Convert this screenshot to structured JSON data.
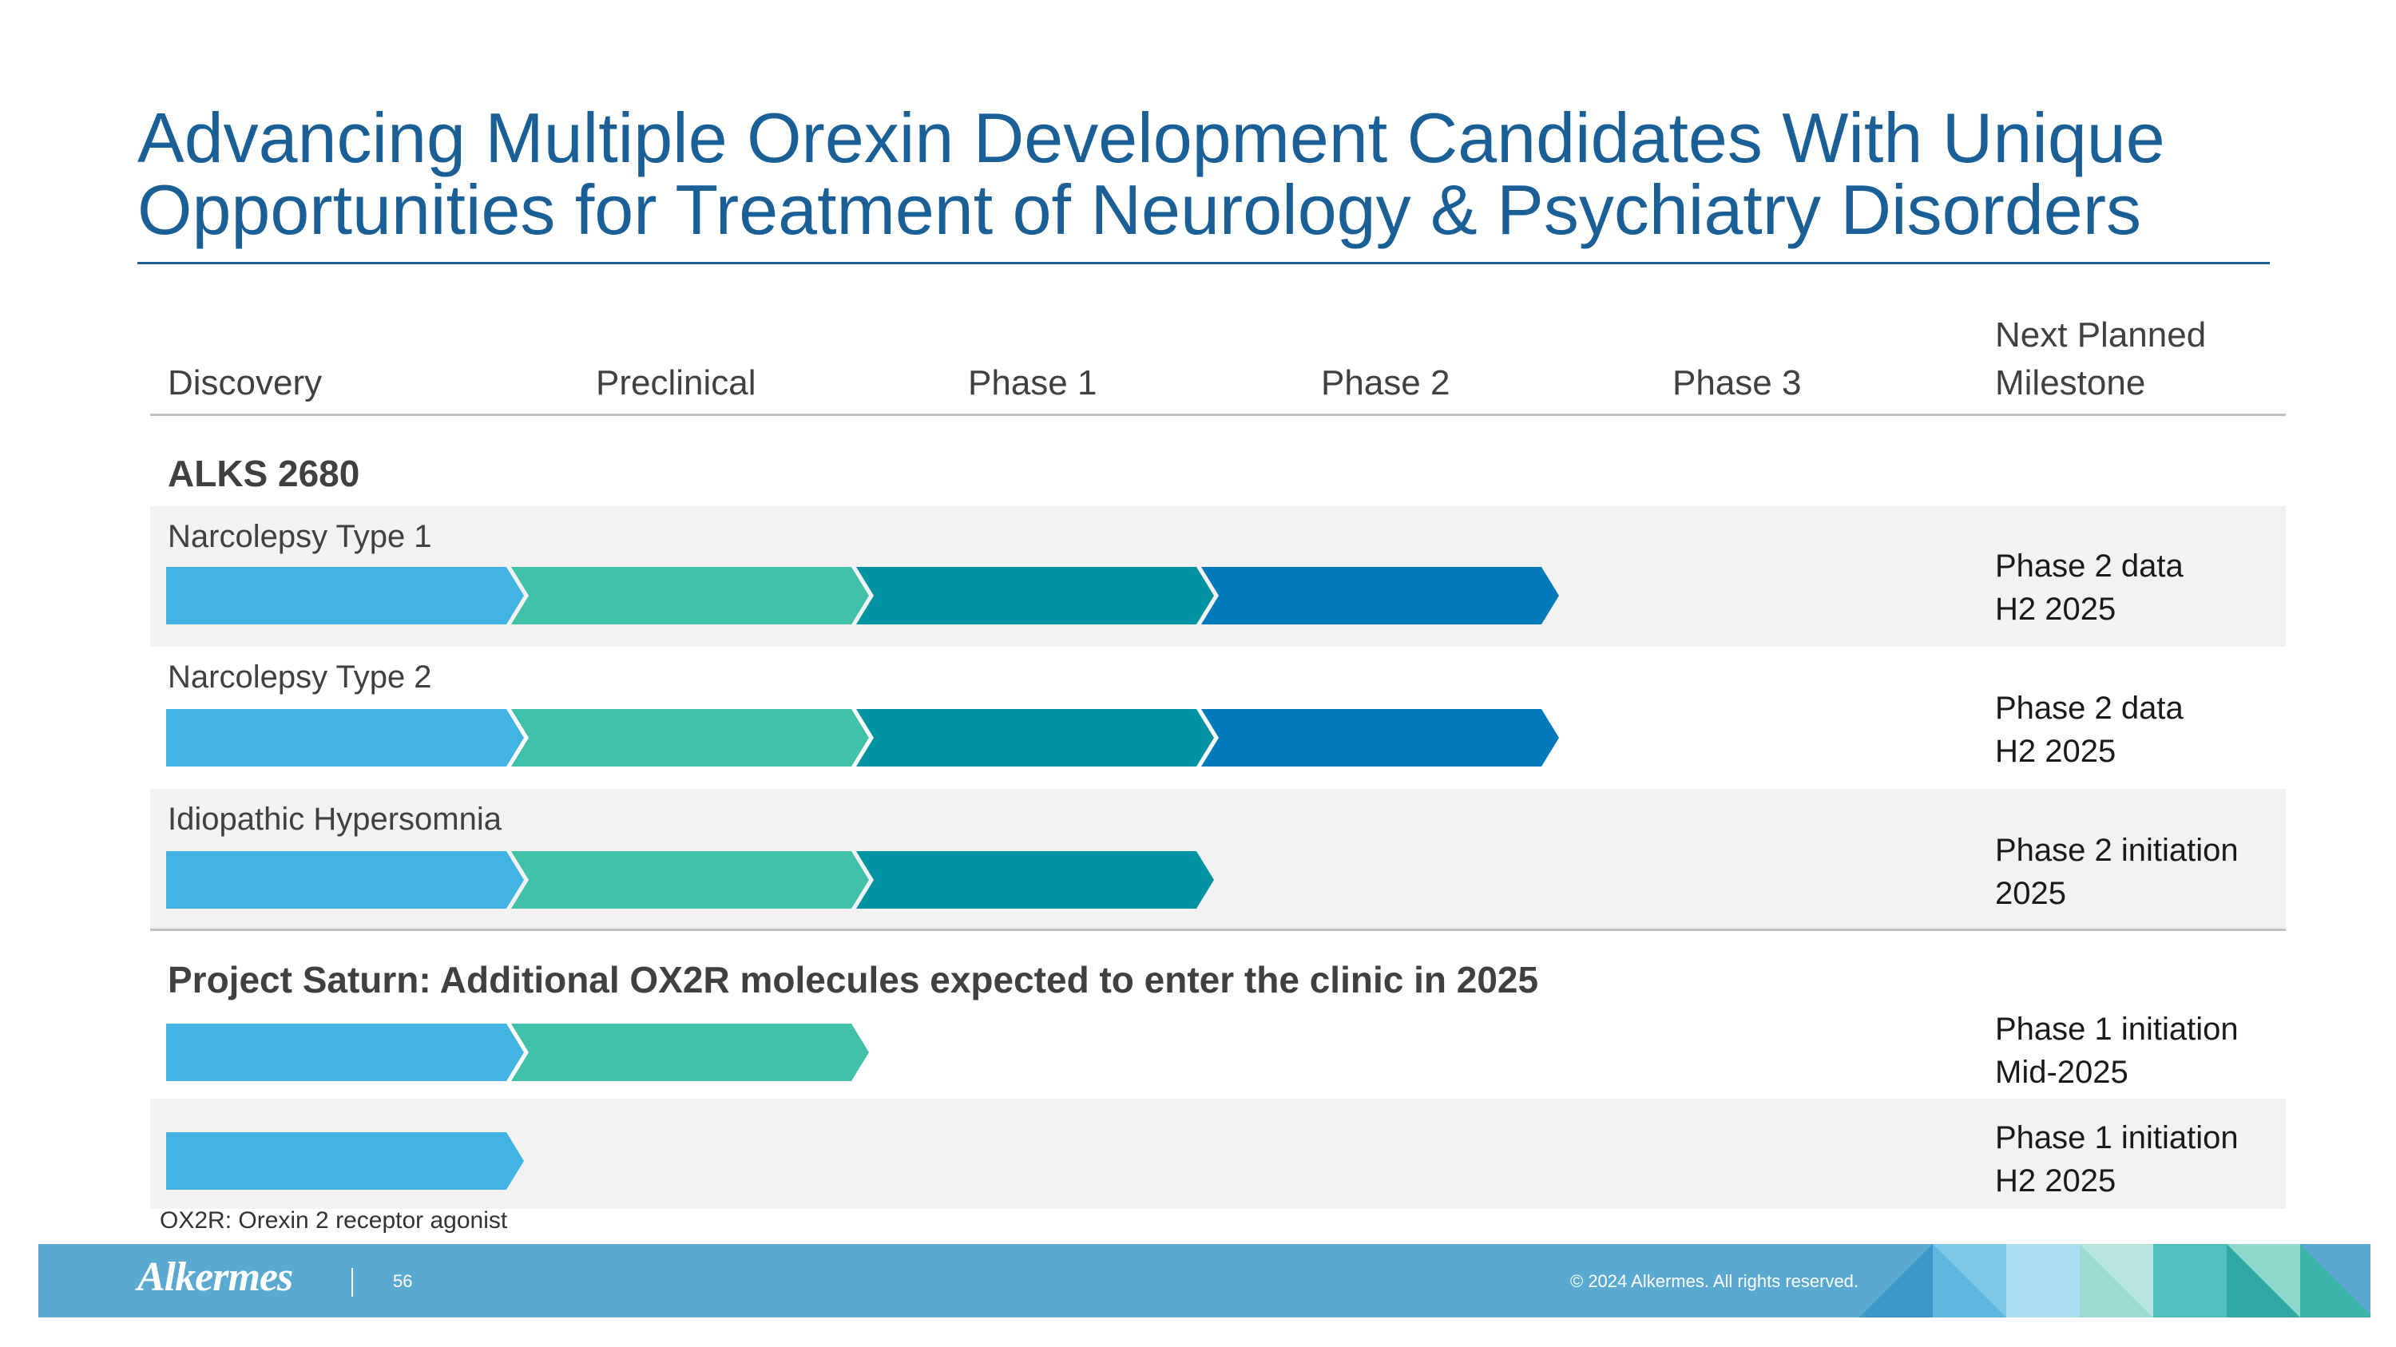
{
  "title": {
    "line1": "Advancing Multiple Orexin Development Candidates With Unique",
    "line2": "Opportunities for Treatment of Neurology & Psychiatry Disorders"
  },
  "columns": {
    "discovery": "Discovery",
    "preclinical": "Preclinical",
    "phase1": "Phase 1",
    "phase2": "Phase 2",
    "phase3": "Phase 3",
    "milestone_line1": "Next Planned",
    "milestone_line2": "Milestone"
  },
  "stage_colors": [
    "#41b4e4",
    "#40c1aa",
    "#0093a1",
    "#007ab8"
  ],
  "sections": [
    {
      "title": "ALKS 2680",
      "rows": [
        {
          "label": "Narcolepsy Type 1",
          "stages_completed": 4,
          "milestone_line1": "Phase 2 data",
          "milestone_line2": "H2 2025"
        },
        {
          "label": "Narcolepsy Type 2",
          "stages_completed": 4,
          "milestone_line1": "Phase 2 data",
          "milestone_line2": "H2 2025"
        },
        {
          "label": "Idiopathic Hypersomnia",
          "stages_completed": 3,
          "milestone_line1": "Phase 2 initiation",
          "milestone_line2": "2025"
        }
      ]
    },
    {
      "title": "Project Saturn: Additional OX2R molecules expected to enter the clinic in 2025",
      "rows": [
        {
          "label": "",
          "stages_completed": 2,
          "milestone_line1": "Phase 1 initiation",
          "milestone_line2": "Mid-2025"
        },
        {
          "label": "",
          "stages_completed": 1,
          "milestone_line1": "Phase 1 initiation",
          "milestone_line2": "H2 2025"
        }
      ]
    }
  ],
  "footnote": "OX2R: Orexin 2 receptor agonist",
  "footer": {
    "logo": "Alkermes",
    "page_number": "56",
    "copyright": "© 2024 Alkermes. All rights reserved.",
    "accent_colors": [
      "#3d98c8",
      "#7ec8e8",
      "#a9dff0",
      "#b6e6de",
      "#4fc0bd",
      "#8fd9cc",
      "#38b4a8"
    ]
  }
}
